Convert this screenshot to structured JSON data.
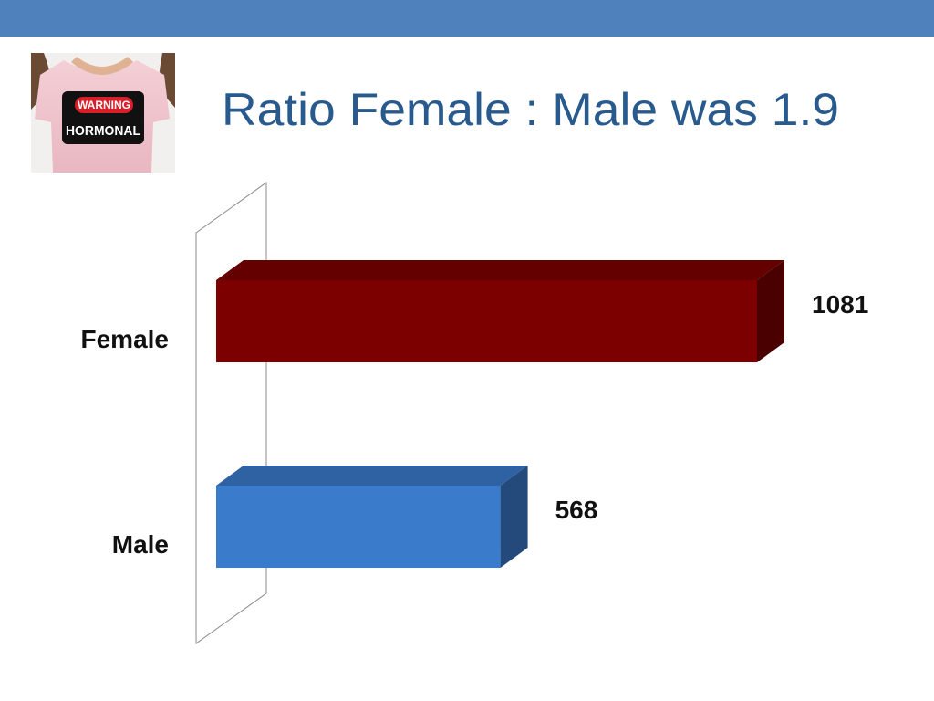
{
  "chart_data": {
    "type": "bar",
    "orientation": "horizontal",
    "title": "Ratio Female : Male was 1.9",
    "categories": [
      "Female",
      "Male"
    ],
    "values": [
      1081,
      568
    ],
    "colors": [
      "#7d0000",
      "#3b7bcc"
    ],
    "annotations": [
      "WARNING",
      "HORMONAL"
    ]
  }
}
